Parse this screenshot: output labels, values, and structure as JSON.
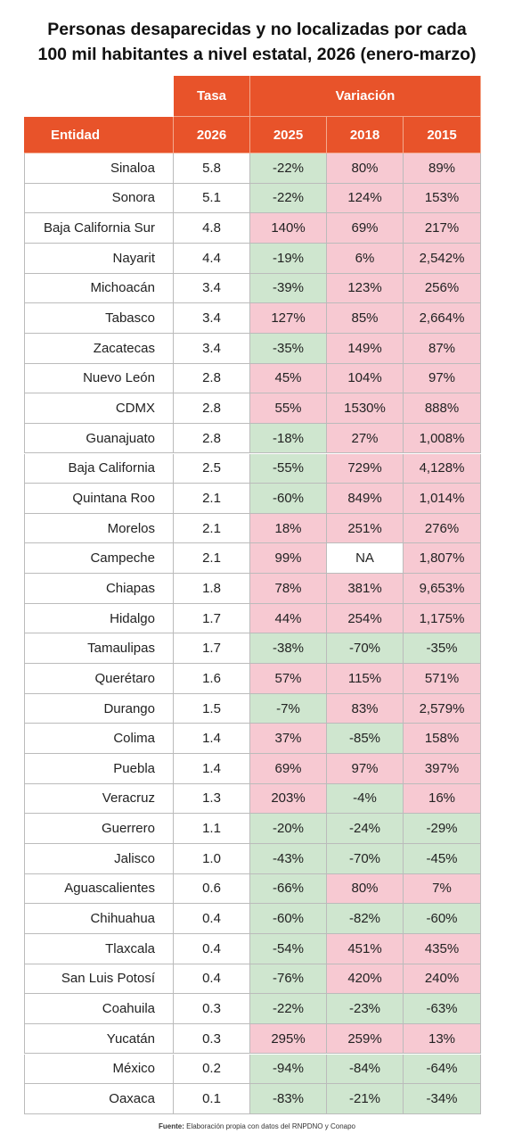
{
  "title": [
    "Personas desaparecidas y no localizadas por cada",
    "100 mil habitantes a nivel estatal, 2026 (enero-marzo)"
  ],
  "table": {
    "group_headers": [
      "Tasa",
      "Variación"
    ],
    "headers": [
      "Entidad",
      "2026",
      "2025",
      "2018",
      "2015"
    ],
    "rows": [
      [
        "Sinaloa",
        "5.8",
        "-22%",
        "80%",
        "89%"
      ],
      [
        "Sonora",
        "5.1",
        "-22%",
        "124%",
        "153%"
      ],
      [
        "Baja California Sur",
        "4.8",
        "140%",
        "69%",
        "217%"
      ],
      [
        "Nayarit",
        "4.4",
        "-19%",
        "6%",
        "2,542%"
      ],
      [
        "Michoacán",
        "3.4",
        "-39%",
        "123%",
        "256%"
      ],
      [
        "Tabasco",
        "3.4",
        "127%",
        "85%",
        "2,664%"
      ],
      [
        "Zacatecas",
        "3.4",
        "-35%",
        "149%",
        "87%"
      ],
      [
        "Nuevo León",
        "2.8",
        "45%",
        "104%",
        "97%"
      ],
      [
        "CDMX",
        "2.8",
        "55%",
        "1530%",
        "888%"
      ],
      [
        "Guanajuato",
        "2.8",
        "-18%",
        "27%",
        "1,008%"
      ],
      [
        "Baja California",
        "2.5",
        "-55%",
        "729%",
        "4,128%"
      ],
      [
        "Quintana Roo",
        "2.1",
        "-60%",
        "849%",
        "1,014%"
      ],
      [
        "Morelos",
        "2.1",
        "18%",
        "251%",
        "276%"
      ],
      [
        "Campeche",
        "2.1",
        "99%",
        "NA",
        "1,807%"
      ],
      [
        "Chiapas",
        "1.8",
        "78%",
        "381%",
        "9,653%"
      ],
      [
        "Hidalgo",
        "1.7",
        "44%",
        "254%",
        "1,175%"
      ],
      [
        "Tamaulipas",
        "1.7",
        "-38%",
        "-70%",
        "-35%"
      ],
      [
        "Querétaro",
        "1.6",
        "57%",
        "115%",
        "571%"
      ],
      [
        "Durango",
        "1.5",
        "-7%",
        "83%",
        "2,579%"
      ],
      [
        "Colima",
        "1.4",
        "37%",
        "-85%",
        "158%"
      ],
      [
        "Puebla",
        "1.4",
        "69%",
        "97%",
        "397%"
      ],
      [
        "Veracruz",
        "1.3",
        "203%",
        "-4%",
        "16%"
      ],
      [
        "Guerrero",
        "1.1",
        "-20%",
        "-24%",
        "-29%"
      ],
      [
        "Jalisco",
        "1.0",
        "-43%",
        "-70%",
        "-45%"
      ],
      [
        "Aguascalientes",
        "0.6",
        "-66%",
        "80%",
        "7%"
      ],
      [
        "Chihuahua",
        "0.4",
        "-60%",
        "-82%",
        "-60%"
      ],
      [
        "Tlaxcala",
        "0.4",
        "-54%",
        "451%",
        "435%"
      ],
      [
        "San Luis Potosí",
        "0.4",
        "-76%",
        "420%",
        "240%"
      ],
      [
        "Coahuila",
        "0.3",
        "-22%",
        "-23%",
        "-63%"
      ],
      [
        "Yucatán",
        "0.3",
        "295%",
        "259%",
        "13%"
      ],
      [
        "México",
        "0.2",
        "-94%",
        "-84%",
        "-64%"
      ],
      [
        "Oaxaca",
        "0.1",
        "-83%",
        "-21%",
        "-34%"
      ]
    ]
  },
  "footer": {
    "label": "Fuente:",
    "text": "Elaboración propia con datos del RNPDNO y Conapo"
  }
}
